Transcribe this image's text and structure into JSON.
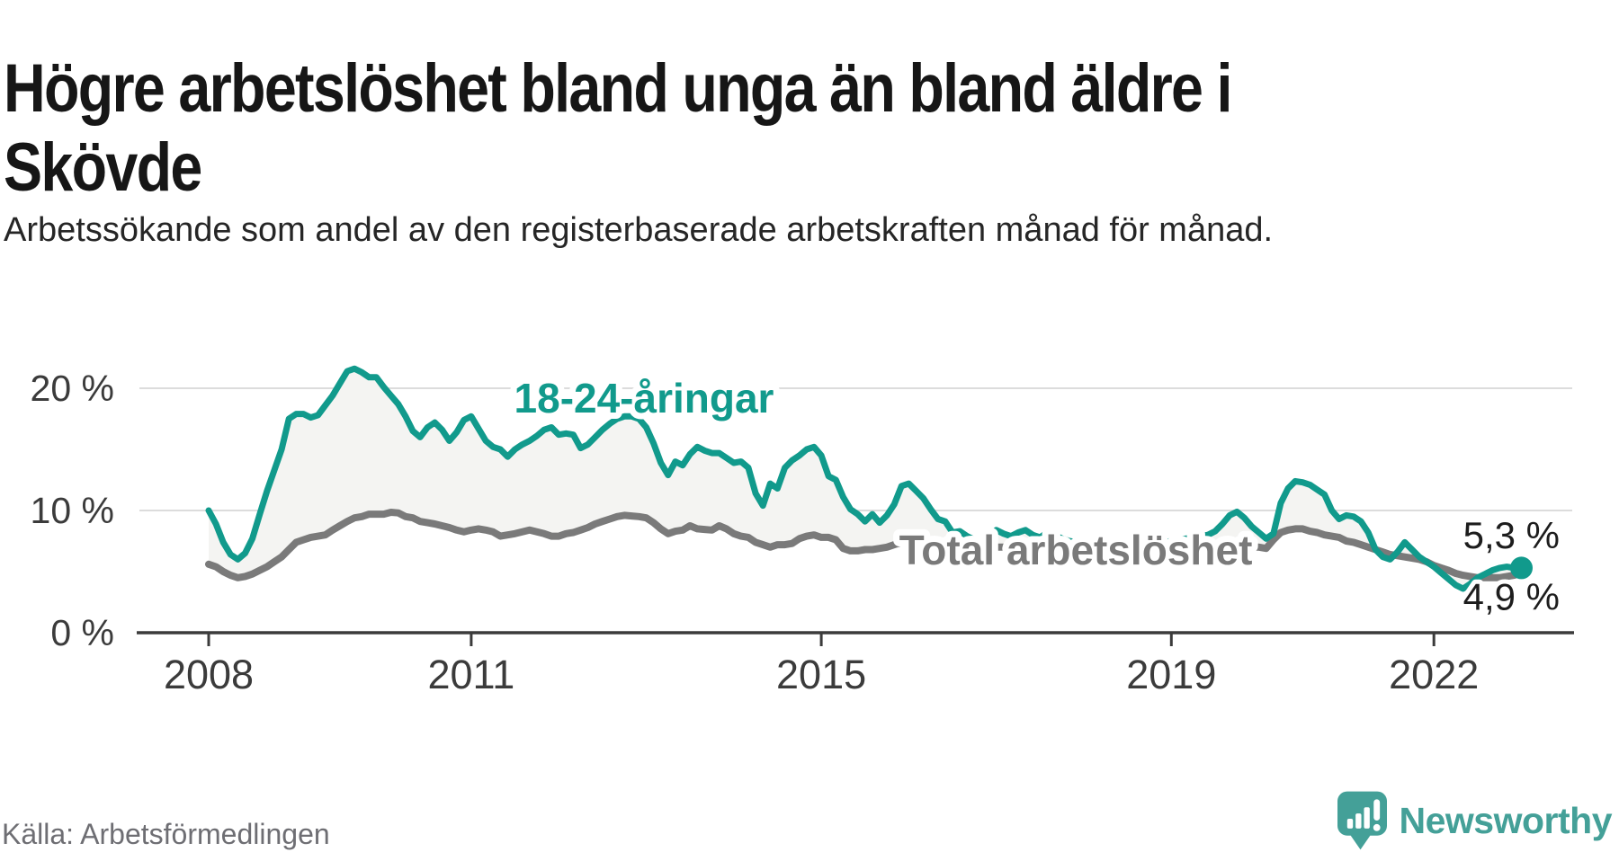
{
  "title": "Högre arbetslöshet bland unga än bland äldre i Skövde",
  "subtitle": "Arbetssökande som andel av den registerbaserade arbetskraften månad för månad.",
  "source": "Källa: Arbetsförmedlingen",
  "branding": {
    "name": "Newsworthy"
  },
  "colors": {
    "youth": "#119a8c",
    "total": "#7a7a7a",
    "between_fill": "#f4f4f2",
    "grid": "#dcdcdc",
    "axis": "#3b3b3b",
    "value_text": "#1d1d1d",
    "logo": "#44a098"
  },
  "chart_data": {
    "type": "line",
    "title": "Högre arbetslöshet bland unga än bland äldre i Skövde",
    "subtitle": "Arbetssökande som andel av den registerbaserade arbetskraften månad för månad.",
    "unit": "%",
    "x_start": "2008-01",
    "x_frequency": "monthly",
    "xticks": [
      2008,
      2011,
      2015,
      2019,
      2022
    ],
    "xtick_labels": [
      "2008",
      "2011",
      "2015",
      "2019",
      "2022"
    ],
    "yticks": [
      0,
      10,
      20
    ],
    "ytick_labels": [
      "0 %",
      "10 %",
      "20 %"
    ],
    "ylim": [
      0,
      22
    ],
    "xlim_years": [
      2007.2,
      2023.6
    ],
    "grid": "horizontal",
    "legend": "inline-labels",
    "fill_between_series": true,
    "end_dot_series": "18-24-åringar",
    "series": [
      {
        "name": "18-24-åringar",
        "end_label": "5,3 %",
        "last_value": 5.3,
        "values": [
          10.0,
          8.9,
          7.4,
          6.4,
          6.0,
          6.5,
          7.7,
          9.7,
          11.6,
          13.3,
          15.0,
          17.5,
          17.9,
          17.9,
          17.6,
          17.8,
          18.6,
          19.4,
          20.4,
          21.4,
          21.6,
          21.3,
          20.9,
          20.9,
          20.1,
          19.4,
          18.7,
          17.7,
          16.5,
          16.0,
          16.8,
          17.2,
          16.6,
          15.7,
          16.4,
          17.4,
          17.7,
          16.7,
          15.7,
          15.2,
          15.0,
          14.4,
          15.0,
          15.4,
          15.7,
          16.1,
          16.6,
          16.8,
          16.2,
          16.3,
          16.2,
          15.1,
          15.4,
          16.0,
          16.6,
          17.1,
          17.5,
          17.7,
          17.7,
          17.5,
          16.8,
          15.5,
          13.9,
          12.9,
          14.0,
          13.7,
          14.6,
          15.2,
          14.9,
          14.7,
          14.7,
          14.3,
          13.9,
          14.0,
          13.5,
          11.4,
          10.4,
          12.2,
          11.8,
          13.5,
          14.1,
          14.5,
          15.0,
          15.2,
          14.5,
          12.8,
          12.5,
          11.1,
          10.1,
          9.7,
          9.1,
          9.7,
          9.0,
          9.6,
          10.5,
          12.0,
          12.2,
          11.6,
          11.0,
          10.1,
          9.3,
          9.1,
          8.2,
          8.3,
          7.9,
          7.6,
          7.5,
          7.8,
          8.4,
          8.1,
          7.9,
          8.2,
          8.4,
          8.0,
          7.8,
          8.2,
          8.0,
          7.7,
          7.5,
          7.4,
          7.2,
          7.0,
          6.9,
          6.8,
          6.7,
          6.8,
          6.9,
          7.0,
          7.1,
          7.2,
          7.3,
          7.4,
          7.5,
          7.6,
          7.7,
          7.8,
          7.9,
          8.0,
          8.3,
          8.9,
          9.6,
          9.9,
          9.4,
          8.7,
          8.2,
          7.7,
          8.1,
          10.6,
          11.8,
          12.4,
          12.3,
          12.1,
          11.7,
          11.3,
          10.0,
          9.3,
          9.6,
          9.5,
          9.1,
          8.2,
          6.8,
          6.2,
          6.0,
          6.6,
          7.4,
          6.8,
          6.2,
          5.8,
          5.4,
          4.9,
          4.4,
          3.9,
          3.6,
          4.0,
          4.5,
          4.8,
          5.1,
          5.3,
          5.4,
          5.3,
          5.3
        ]
      },
      {
        "name": "Total arbetslöshet",
        "end_label": "4,9 %",
        "last_value": 4.9,
        "values": [
          5.6,
          5.4,
          5.0,
          4.7,
          4.5,
          4.6,
          4.8,
          5.1,
          5.4,
          5.8,
          6.2,
          6.8,
          7.4,
          7.6,
          7.8,
          7.9,
          8.0,
          8.4,
          8.75,
          9.1,
          9.4,
          9.5,
          9.7,
          9.7,
          9.7,
          9.85,
          9.8,
          9.5,
          9.4,
          9.1,
          9.0,
          8.9,
          8.75,
          8.6,
          8.4,
          8.25,
          8.4,
          8.5,
          8.4,
          8.25,
          7.9,
          8.0,
          8.1,
          8.25,
          8.4,
          8.25,
          8.1,
          7.9,
          7.9,
          8.1,
          8.2,
          8.4,
          8.6,
          8.9,
          9.1,
          9.3,
          9.5,
          9.6,
          9.55,
          9.5,
          9.4,
          9.0,
          8.5,
          8.1,
          8.3,
          8.4,
          8.75,
          8.5,
          8.45,
          8.4,
          8.75,
          8.5,
          8.1,
          7.9,
          7.8,
          7.4,
          7.2,
          7.0,
          7.2,
          7.2,
          7.3,
          7.7,
          7.9,
          8.0,
          7.8,
          7.8,
          7.6,
          6.9,
          6.7,
          6.7,
          6.8,
          6.8,
          6.9,
          7.0,
          7.2,
          7.4,
          7.3,
          7.25,
          7.2,
          7.1,
          7.0,
          7.0,
          6.9,
          6.9,
          7.0,
          7.1,
          7.0,
          7.0,
          7.0,
          7.0,
          7.0,
          6.9,
          6.8,
          6.8,
          6.7,
          6.7,
          6.6,
          6.6,
          6.5,
          6.5,
          6.4,
          6.3,
          6.3,
          6.2,
          6.2,
          6.2,
          6.3,
          6.3,
          6.4,
          6.5,
          6.6,
          6.7,
          6.8,
          6.8,
          6.9,
          6.9,
          7.0,
          7.0,
          7.05,
          7.0,
          7.0,
          6.9,
          6.9,
          7.0,
          7.0,
          6.9,
          7.6,
          8.2,
          8.4,
          8.5,
          8.5,
          8.3,
          8.2,
          8.0,
          7.9,
          7.8,
          7.5,
          7.4,
          7.2,
          7.0,
          6.8,
          6.6,
          6.4,
          6.3,
          6.2,
          6.1,
          6.0,
          5.8,
          5.5,
          5.3,
          5.1,
          4.85,
          4.7,
          4.6,
          4.5,
          4.5,
          4.5,
          4.5,
          4.6,
          4.7,
          4.9
        ]
      }
    ]
  }
}
